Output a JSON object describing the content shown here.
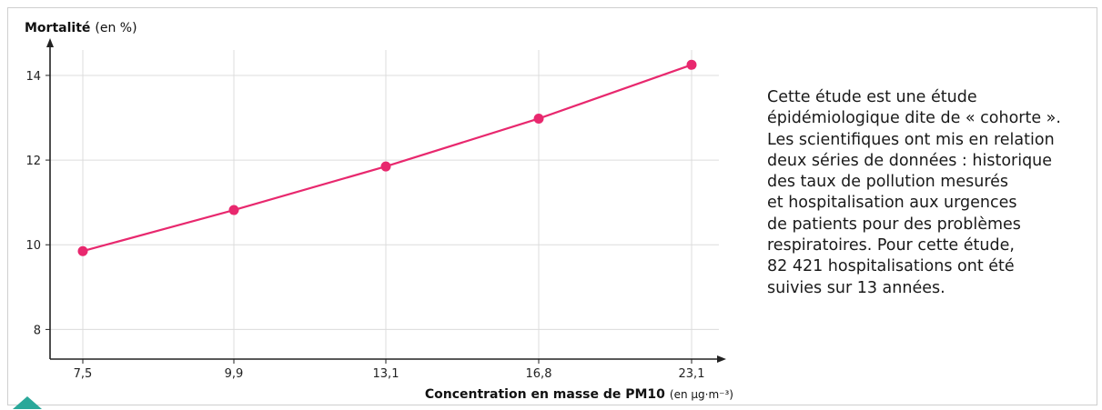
{
  "chart_data": {
    "type": "line",
    "ylabel": "Mortalité",
    "ylabel_unit": "(en %)",
    "xlabel": "Concentration en masse de PM10",
    "xlabel_unit": "(en µg·m⁻³)",
    "categories": [
      "7,5",
      "9,9",
      "13,1",
      "16,8",
      "23,1"
    ],
    "values": [
      9.85,
      10.82,
      11.85,
      12.98,
      14.25
    ],
    "ylim": [
      7.3,
      14.6
    ],
    "yticks": [
      8,
      10,
      12,
      14
    ],
    "grid": true,
    "color": "#e8286e"
  },
  "caption": {
    "lines": [
      "Cette étude est une étude",
      "épidémiologique dite de « cohorte ».",
      "Les scientifiques ont mis en relation",
      "deux séries de données : historique",
      "des taux de pollution mesurés",
      "et hospitalisation aux urgences",
      "de patients pour des problèmes",
      "respiratoires. Pour cette étude,",
      "82 421 hospitalisations ont été",
      "suivies sur 13 années."
    ]
  }
}
